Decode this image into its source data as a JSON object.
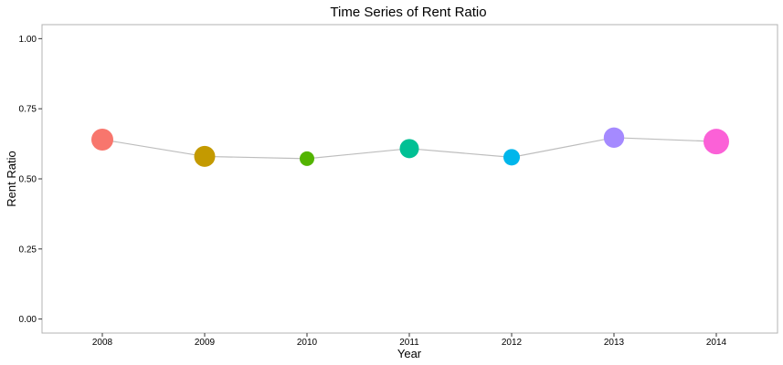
{
  "chart_data": {
    "type": "scatter",
    "title": "Time Series of Rent Ratio",
    "xlabel": "Year",
    "ylabel": "Rent Ratio",
    "ylim": [
      -0.05,
      1.05
    ],
    "grid": false,
    "connect_line": true,
    "line_color": "#bdbdbd",
    "categories": [
      "2008",
      "2009",
      "2010",
      "2011",
      "2012",
      "2013",
      "2014"
    ],
    "values": [
      0.64,
      0.58,
      0.572,
      0.608,
      0.577,
      0.647,
      0.633
    ],
    "point_sizes": [
      0.7,
      0.65,
      0.3,
      0.55,
      0.4,
      0.62,
      0.9
    ],
    "colors": [
      "#F8766D",
      "#C49A00",
      "#53B400",
      "#00C094",
      "#00B6EB",
      "#A58AFF",
      "#FB61D7"
    ],
    "y_ticks": [
      "0.00",
      "0.25",
      "0.50",
      "0.75",
      "1.00"
    ]
  }
}
